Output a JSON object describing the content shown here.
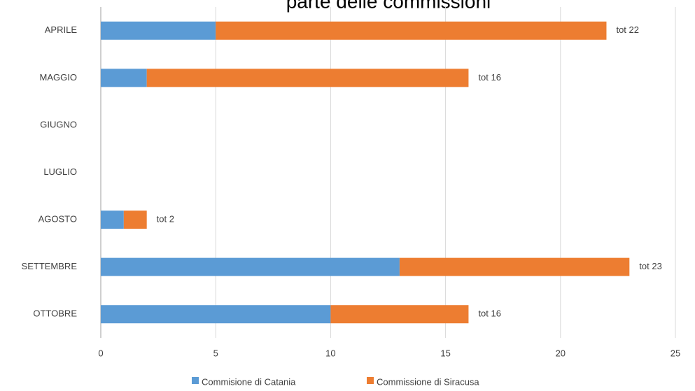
{
  "chart_data": {
    "type": "stacked_barh",
    "title": "parte delle commissioni",
    "categories": [
      "APRILE",
      "MAGGIO",
      "GIUGNO",
      "LUGLIO",
      "AGOSTO",
      "SETTEMBRE",
      "OTTOBRE"
    ],
    "series": [
      {
        "name": "Commisione di Catania",
        "color": "#5b9bd5",
        "values": [
          5,
          2,
          null,
          null,
          1,
          13,
          10
        ]
      },
      {
        "name": "Commissione di Siracusa",
        "color": "#ed7d31",
        "values": [
          17,
          14,
          null,
          null,
          1,
          10,
          6
        ]
      }
    ],
    "total_labels": [
      "tot 22",
      "tot 16",
      null,
      null,
      "tot 2",
      "tot 23",
      "tot 16"
    ],
    "xlim": [
      0,
      25
    ],
    "xticks": [
      0,
      5,
      10,
      15,
      20,
      25
    ],
    "grid": true,
    "legend": "bottom"
  }
}
